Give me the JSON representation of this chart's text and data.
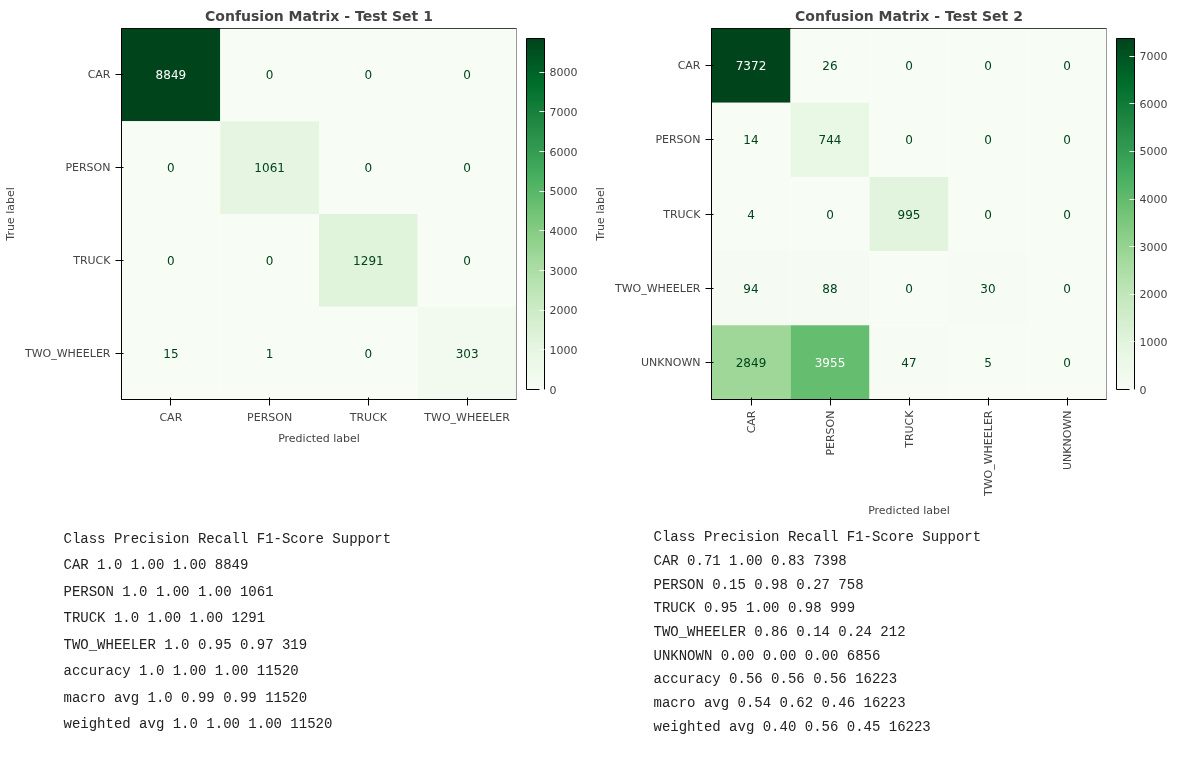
{
  "chart_data": [
    {
      "type": "heatmap",
      "title": "Confusion Matrix - Test Set 1",
      "xlabel": "Predicted label",
      "ylabel": "True label",
      "categories": [
        "CAR",
        "PERSON",
        "TRUCK",
        "TWO_WHEELER"
      ],
      "y_categories": [
        "CAR",
        "PERSON",
        "TRUCK",
        "TWO_WHEELER"
      ],
      "cells": [
        [
          8849,
          0,
          0,
          0
        ],
        [
          0,
          1061,
          0,
          0
        ],
        [
          0,
          0,
          1291,
          0
        ],
        [
          15,
          1,
          0,
          303
        ]
      ],
      "clim": [
        0,
        8849
      ],
      "cticks": [
        0,
        1000,
        2000,
        3000,
        4000,
        5000,
        6000,
        7000,
        8000
      ],
      "data_labels": true
    },
    {
      "type": "heatmap",
      "title": "Confusion Matrix - Test Set 2",
      "xlabel": "Predicted label",
      "ylabel": "True label",
      "categories": [
        "CAR",
        "PERSON",
        "TRUCK",
        "TWO_WHEELER",
        "UNKNOWN"
      ],
      "y_categories": [
        "CAR",
        "PERSON",
        "TRUCK",
        "TWO_WHEELER",
        "UNKNOWN"
      ],
      "cells": [
        [
          7372,
          26,
          0,
          0,
          0
        ],
        [
          14,
          744,
          0,
          0,
          0
        ],
        [
          4,
          0,
          995,
          0,
          0
        ],
        [
          94,
          88,
          0,
          30,
          0
        ],
        [
          2849,
          3955,
          47,
          5,
          0
        ]
      ],
      "clim": [
        0,
        7372
      ],
      "cticks": [
        0,
        1000,
        2000,
        3000,
        4000,
        5000,
        6000,
        7000
      ],
      "data_labels": true
    },
    {
      "type": "other",
      "annotations": [
        "      Class  Precision  Recall  F1-Score  Support",
        "        CAR        1.0    1.00      1.00     8849",
        "     PERSON        1.0    1.00      1.00     1061",
        "      TRUCK        1.0    1.00      1.00     1291",
        "TWO_WHEELER        1.0    0.95      0.97      319",
        "   accuracy        1.0    1.00      1.00    11520",
        "  macro avg        1.0    0.99      0.99    11520",
        "weighted avg       1.0    1.00      1.00    11520"
      ]
    },
    {
      "type": "other",
      "annotations": [
        "       Class  Precision  Recall  F1-Score  Support",
        "         CAR       0.71    1.00      0.83     7398",
        "      PERSON       0.15    0.98      0.27      758",
        "       TRUCK       0.95    1.00      0.98      999",
        " TWO_WHEELER       0.86    0.14      0.24      212",
        "     UNKNOWN       0.00    0.00      0.00     6856",
        "    accuracy       0.56    0.56      0.56    16223",
        "   macro avg       0.54    0.62      0.46    16223",
        "weighted avg       0.40    0.56      0.45    16223"
      ]
    }
  ]
}
